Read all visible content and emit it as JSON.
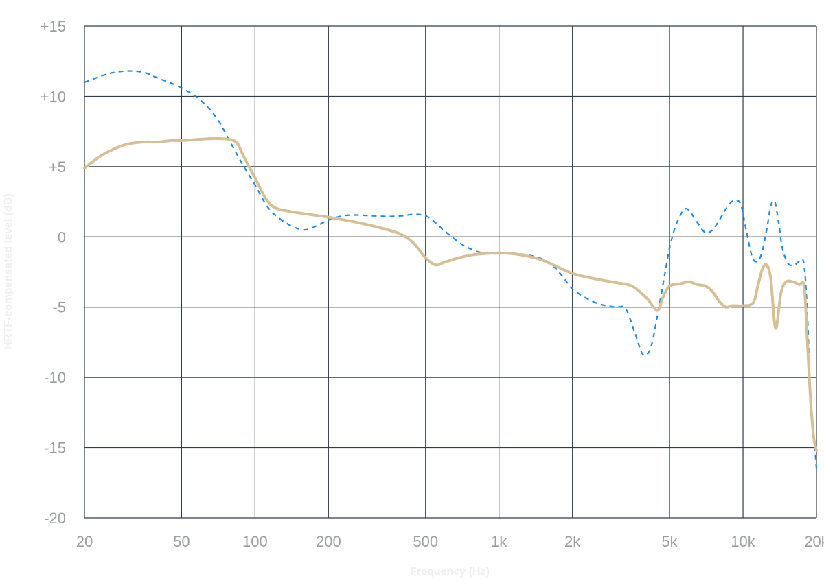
{
  "chart_data": {
    "type": "line",
    "xlabel": "Frequency (Hz)",
    "ylabel": "HRTF-compensated level (dB)",
    "x_scale": "log",
    "xlim": [
      20,
      20000
    ],
    "ylim": [
      -20,
      15
    ],
    "grid": true,
    "x_ticks": [
      {
        "value": 20,
        "label": "20"
      },
      {
        "value": 50,
        "label": "50"
      },
      {
        "value": 100,
        "label": "100"
      },
      {
        "value": 200,
        "label": "200"
      },
      {
        "value": 500,
        "label": "500"
      },
      {
        "value": 1000,
        "label": "1k"
      },
      {
        "value": 2000,
        "label": "2k"
      },
      {
        "value": 5000,
        "label": "5k"
      },
      {
        "value": 10000,
        "label": "10k"
      },
      {
        "value": 20000,
        "label": "20k"
      }
    ],
    "y_ticks": [
      {
        "value": 15,
        "label": "+15"
      },
      {
        "value": 10,
        "label": "+10"
      },
      {
        "value": 5,
        "label": "+5"
      },
      {
        "value": 0,
        "label": "0"
      },
      {
        "value": -5,
        "label": "-5"
      },
      {
        "value": -10,
        "label": "-10"
      },
      {
        "value": -15,
        "label": "-15"
      },
      {
        "value": -20,
        "label": "-20"
      }
    ],
    "series": [
      {
        "style": "dashed",
        "color": "#1e88e5",
        "points": [
          [
            20,
            11.0
          ],
          [
            25,
            11.6
          ],
          [
            30,
            11.8
          ],
          [
            35,
            11.7
          ],
          [
            40,
            11.3
          ],
          [
            50,
            10.6
          ],
          [
            60,
            9.7
          ],
          [
            70,
            8.4
          ],
          [
            80,
            6.6
          ],
          [
            90,
            5.0
          ],
          [
            100,
            3.7
          ],
          [
            110,
            2.4
          ],
          [
            120,
            1.6
          ],
          [
            140,
            0.8
          ],
          [
            160,
            0.5
          ],
          [
            180,
            0.8
          ],
          [
            200,
            1.2
          ],
          [
            230,
            1.5
          ],
          [
            260,
            1.55
          ],
          [
            300,
            1.5
          ],
          [
            350,
            1.45
          ],
          [
            400,
            1.5
          ],
          [
            450,
            1.6
          ],
          [
            500,
            1.5
          ],
          [
            550,
            1.0
          ],
          [
            600,
            0.4
          ],
          [
            700,
            -0.5
          ],
          [
            800,
            -1.0
          ],
          [
            900,
            -1.2
          ],
          [
            1000,
            -1.2
          ],
          [
            1100,
            -1.2
          ],
          [
            1200,
            -1.2
          ],
          [
            1400,
            -1.4
          ],
          [
            1600,
            -1.8
          ],
          [
            1800,
            -2.7
          ],
          [
            2000,
            -3.7
          ],
          [
            2300,
            -4.4
          ],
          [
            2600,
            -4.8
          ],
          [
            3000,
            -5.0
          ],
          [
            3300,
            -5.1
          ],
          [
            3600,
            -6.8
          ],
          [
            3900,
            -8.4
          ],
          [
            4200,
            -7.8
          ],
          [
            4500,
            -5.2
          ],
          [
            4800,
            -2.5
          ],
          [
            5000,
            -0.8
          ],
          [
            5300,
            0.8
          ],
          [
            5700,
            1.9
          ],
          [
            6000,
            1.9
          ],
          [
            6400,
            1.2
          ],
          [
            7000,
            0.3
          ],
          [
            7500,
            0.5
          ],
          [
            8000,
            1.2
          ],
          [
            8600,
            2.1
          ],
          [
            9200,
            2.6
          ],
          [
            9800,
            2.3
          ],
          [
            10300,
            0.5
          ],
          [
            11000,
            -1.6
          ],
          [
            11800,
            -1.4
          ],
          [
            12500,
            0.5
          ],
          [
            13000,
            2.2
          ],
          [
            13500,
            2.5
          ],
          [
            14000,
            1.0
          ],
          [
            14500,
            -0.8
          ],
          [
            15300,
            -1.9
          ],
          [
            16200,
            -2.0
          ],
          [
            16800,
            -1.8
          ],
          [
            17300,
            -1.6
          ],
          [
            17800,
            -2.0
          ],
          [
            18300,
            -5.0
          ],
          [
            18900,
            -11.0
          ],
          [
            19500,
            -14.0
          ],
          [
            20000,
            -16.5
          ]
        ]
      },
      {
        "style": "solid",
        "color": "#d6bf95",
        "points": [
          [
            20,
            4.9
          ],
          [
            23,
            5.7
          ],
          [
            26,
            6.2
          ],
          [
            30,
            6.6
          ],
          [
            35,
            6.75
          ],
          [
            40,
            6.75
          ],
          [
            45,
            6.85
          ],
          [
            50,
            6.85
          ],
          [
            60,
            6.95
          ],
          [
            70,
            7.0
          ],
          [
            80,
            6.9
          ],
          [
            85,
            6.6
          ],
          [
            90,
            5.7
          ],
          [
            100,
            4.2
          ],
          [
            110,
            2.8
          ],
          [
            120,
            2.1
          ],
          [
            140,
            1.8
          ],
          [
            200,
            1.4
          ],
          [
            250,
            1.1
          ],
          [
            300,
            0.8
          ],
          [
            350,
            0.5
          ],
          [
            400,
            0.15
          ],
          [
            450,
            -0.5
          ],
          [
            500,
            -1.5
          ],
          [
            550,
            -2.0
          ],
          [
            600,
            -1.8
          ],
          [
            700,
            -1.45
          ],
          [
            800,
            -1.25
          ],
          [
            1000,
            -1.15
          ],
          [
            1200,
            -1.25
          ],
          [
            1500,
            -1.65
          ],
          [
            2000,
            -2.6
          ],
          [
            2500,
            -3.0
          ],
          [
            3000,
            -3.25
          ],
          [
            3500,
            -3.5
          ],
          [
            4000,
            -4.3
          ],
          [
            4300,
            -5.0
          ],
          [
            4500,
            -5.2
          ],
          [
            4700,
            -4.3
          ],
          [
            5000,
            -3.5
          ],
          [
            5500,
            -3.35
          ],
          [
            6000,
            -3.2
          ],
          [
            6500,
            -3.4
          ],
          [
            7000,
            -3.5
          ],
          [
            7500,
            -3.9
          ],
          [
            8000,
            -4.6
          ],
          [
            8500,
            -5.0
          ],
          [
            9000,
            -4.9
          ],
          [
            9500,
            -4.9
          ],
          [
            10000,
            -4.9
          ],
          [
            11000,
            -4.7
          ],
          [
            11500,
            -3.5
          ],
          [
            12000,
            -2.3
          ],
          [
            12500,
            -2.0
          ],
          [
            13000,
            -3.0
          ],
          [
            13600,
            -6.5
          ],
          [
            14300,
            -4.0
          ],
          [
            15000,
            -3.2
          ],
          [
            16000,
            -3.2
          ],
          [
            17000,
            -3.4
          ],
          [
            17800,
            -3.5
          ],
          [
            18300,
            -7.0
          ],
          [
            18900,
            -11.5
          ],
          [
            19500,
            -14.3
          ],
          [
            20000,
            -15.2
          ]
        ]
      }
    ]
  }
}
